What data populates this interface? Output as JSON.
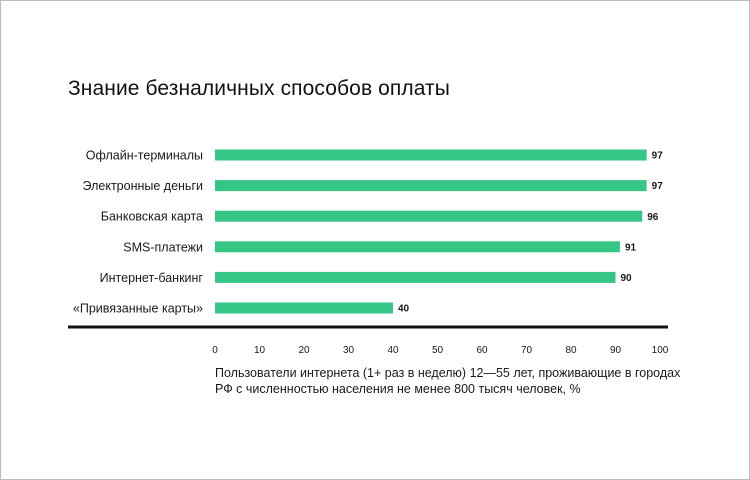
{
  "colors": {
    "bar": "#35c686",
    "axis": "#111111",
    "text": "#1a1a1a",
    "frame": "#bdbdbd"
  },
  "chart_data": {
    "type": "bar",
    "orientation": "horizontal",
    "title": "Знание безналичных способов оплаты",
    "categories": [
      "Офлайн-терминалы",
      "Электронные деньги",
      "Банковская карта",
      "SMS-платежи",
      "Интернет-банкинг",
      "«Привязанные карты»"
    ],
    "values": [
      97,
      97,
      96,
      91,
      90,
      40
    ],
    "value_labels": [
      "97",
      "97",
      "96",
      "91",
      "90",
      "40"
    ],
    "xlim": [
      0,
      100
    ],
    "xticks": [
      "0",
      "10",
      "20",
      "30",
      "40",
      "50",
      "60",
      "70",
      "80",
      "90",
      "100"
    ],
    "xlabel": "",
    "ylabel": "",
    "grid": false,
    "legend": "none",
    "note": "Пользователи интернета (1+ раз в неделю) 12—55 лет, проживающие в городах РФ с численностью населения не менее 800 тысяч человек, %"
  }
}
